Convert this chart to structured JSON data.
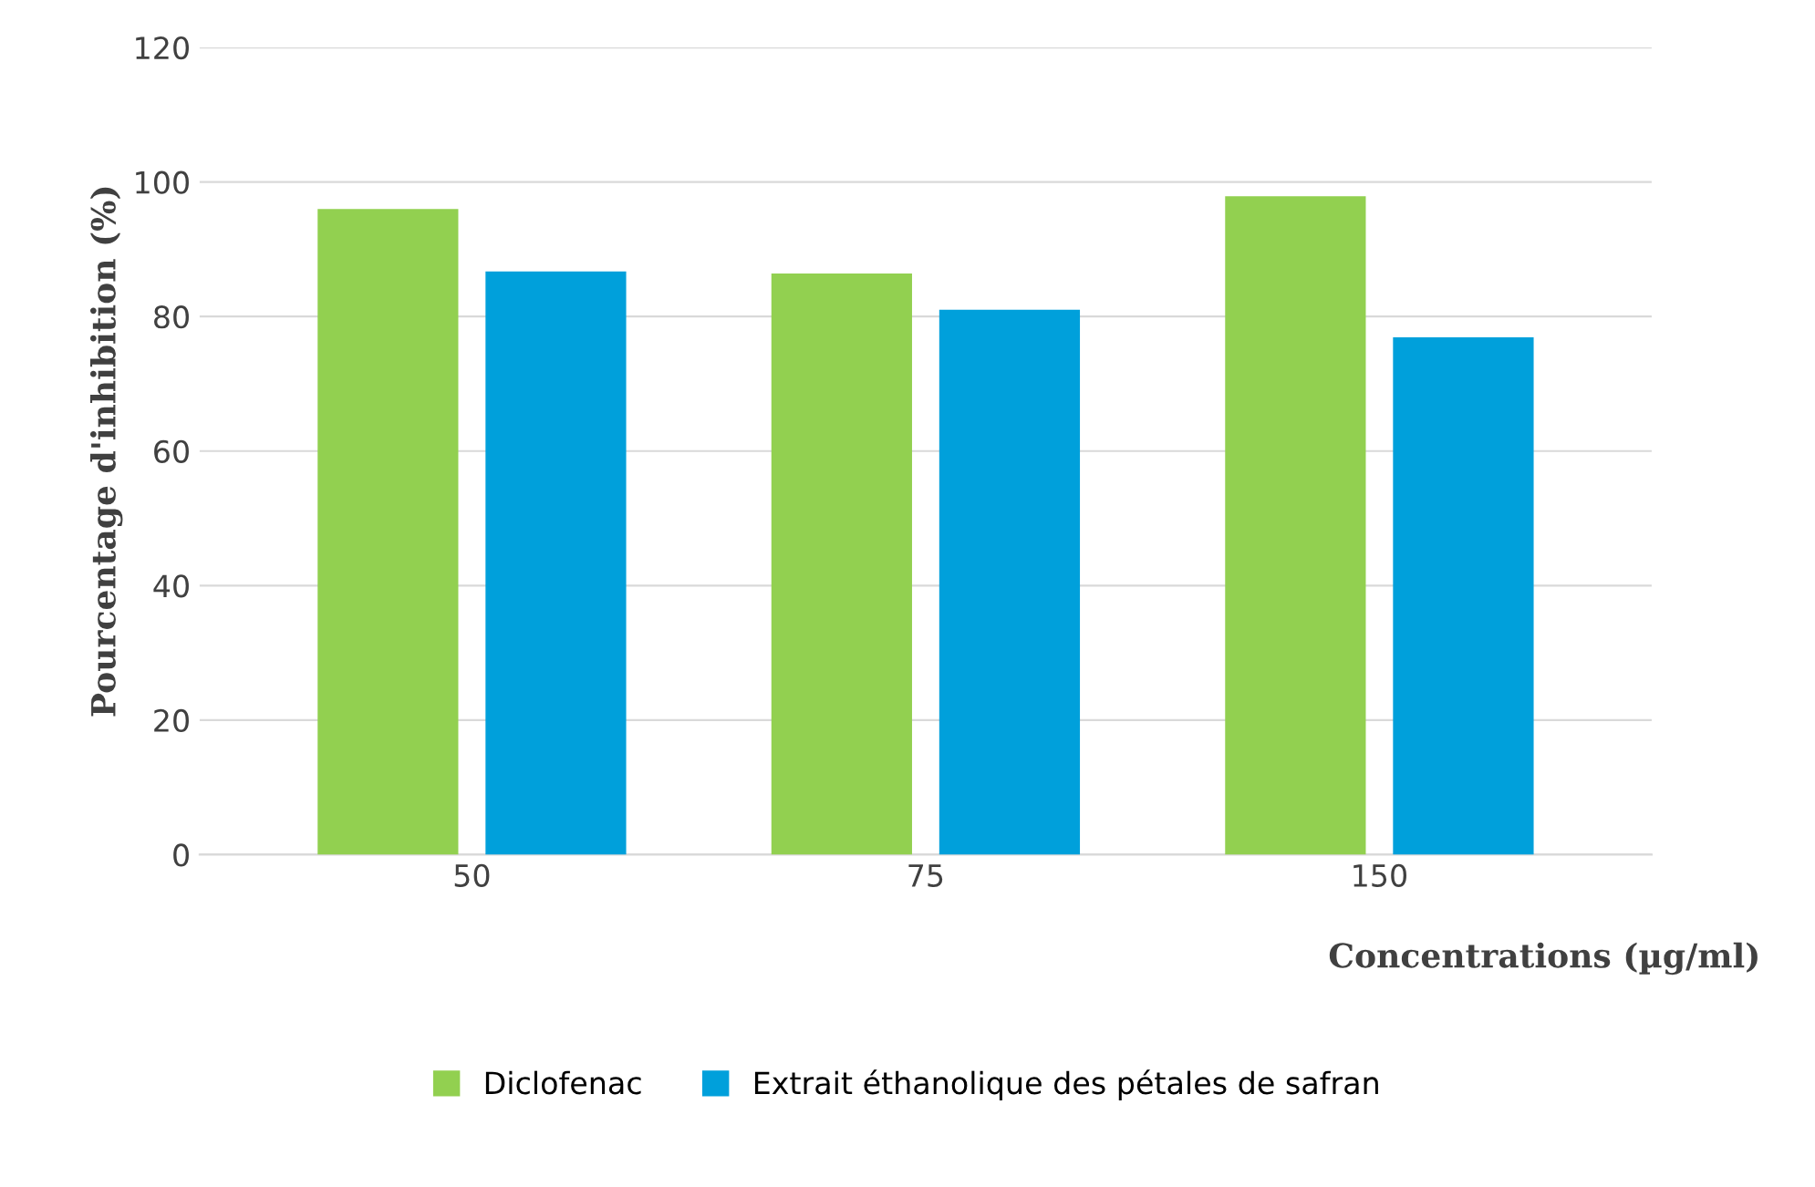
{
  "chart_data": {
    "type": "bar",
    "categories": [
      "50",
      "75",
      "150"
    ],
    "series": [
      {
        "name": "Diclofenac",
        "color": "#92d050",
        "values": [
          96.0,
          86.4,
          97.9
        ]
      },
      {
        "name": "Extrait éthanolique des pétales de safran",
        "color": "#00a0db",
        "values": [
          86.7,
          81.0,
          76.9
        ]
      }
    ],
    "xlabel": "Concentrations (µg/ml)",
    "ylabel": "Pourcentage d'inhibition (%)",
    "ylim": [
      0,
      120
    ],
    "yticks": [
      0,
      20,
      40,
      60,
      80,
      100,
      120
    ],
    "grid": "y",
    "legend": "bottom"
  }
}
